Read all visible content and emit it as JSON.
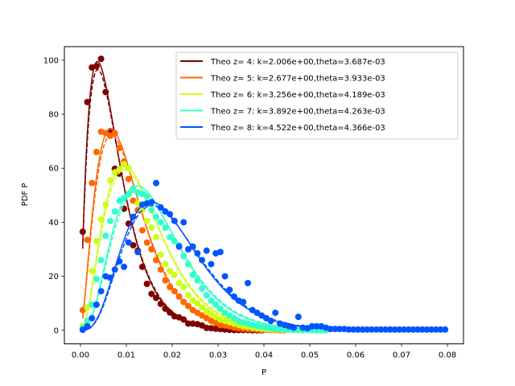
{
  "chart_data": {
    "type": "line",
    "title": "",
    "xlabel": "P",
    "ylabel": "PDF P",
    "xlim": [
      -0.0035,
      0.0835
    ],
    "ylim": [
      -5,
      105
    ],
    "xticks": [
      0.0,
      0.01,
      0.02,
      0.03,
      0.04,
      0.05,
      0.06,
      0.07,
      0.08
    ],
    "xtick_labels": [
      "0.00",
      "0.01",
      "0.02",
      "0.03",
      "0.04",
      "0.05",
      "0.06",
      "0.07",
      "0.08"
    ],
    "yticks": [
      0,
      20,
      40,
      60,
      80,
      100
    ],
    "ytick_labels": [
      "0",
      "20",
      "40",
      "60",
      "80",
      "100"
    ],
    "grid": false,
    "legend_position": "upper right",
    "series": [
      {
        "name": "Theo z= 4: k=2.006e+00,theta=3.687e-03",
        "color": "#800000",
        "k": 2.006,
        "theta": 0.003687,
        "points": [
          [
            0.0005,
            36.5
          ],
          [
            0.0015,
            84.5
          ],
          [
            0.0025,
            97.3
          ],
          [
            0.0035,
            97.8
          ],
          [
            0.0045,
            100.5
          ],
          [
            0.0055,
            88.2
          ],
          [
            0.0065,
            73.7
          ],
          [
            0.0075,
            59.8
          ],
          [
            0.0085,
            58.0
          ],
          [
            0.0095,
            45.0
          ],
          [
            0.0105,
            39.5
          ],
          [
            0.0115,
            31.5
          ],
          [
            0.0125,
            29.5
          ],
          [
            0.0135,
            23.5
          ],
          [
            0.0145,
            17.2
          ],
          [
            0.0155,
            13.5
          ],
          [
            0.0165,
            12.0
          ],
          [
            0.0175,
            9.8
          ],
          [
            0.0185,
            8.0
          ],
          [
            0.0195,
            6.6
          ],
          [
            0.0205,
            5.2
          ],
          [
            0.0215,
            4.8
          ],
          [
            0.0225,
            4.0
          ],
          [
            0.0235,
            2.5
          ],
          [
            0.0245,
            2.5
          ],
          [
            0.0255,
            2.3
          ],
          [
            0.0265,
            1.8
          ],
          [
            0.0275,
            0.9
          ],
          [
            0.0285,
            0.8
          ],
          [
            0.0295,
            0.6
          ],
          [
            0.0305,
            0.5
          ],
          [
            0.0315,
            0.3
          ],
          [
            0.0325,
            0.2
          ],
          [
            0.0335,
            0.1
          ],
          [
            0.0345,
            0.1
          ],
          [
            0.0355,
            0.1
          ],
          [
            0.0365,
            0.1
          ],
          [
            0.0375,
            0.0
          ],
          [
            0.0385,
            0.0
          ],
          [
            0.0395,
            0.0
          ]
        ]
      },
      {
        "name": "Theo z= 5: k=2.677e+00,theta=3.933e-03",
        "color": "#ff6600",
        "k": 2.677,
        "theta": 0.003933,
        "points": [
          [
            0.0005,
            7.5
          ],
          [
            0.0015,
            33.5
          ],
          [
            0.0025,
            54.5
          ],
          [
            0.0035,
            66.0
          ],
          [
            0.0045,
            73.5
          ],
          [
            0.0055,
            73.0
          ],
          [
            0.0065,
            72.0
          ],
          [
            0.0075,
            73.0
          ],
          [
            0.0085,
            67.5
          ],
          [
            0.0095,
            62.5
          ],
          [
            0.0105,
            56.0
          ],
          [
            0.0115,
            48.0
          ],
          [
            0.0125,
            44.5
          ],
          [
            0.0135,
            37.0
          ],
          [
            0.0145,
            32.5
          ],
          [
            0.0155,
            30.0
          ],
          [
            0.0165,
            26.0
          ],
          [
            0.0175,
            22.5
          ],
          [
            0.0185,
            18.5
          ],
          [
            0.0195,
            16.0
          ],
          [
            0.0205,
            14.5
          ],
          [
            0.0215,
            12.5
          ],
          [
            0.0225,
            10.5
          ],
          [
            0.0235,
            9.0
          ],
          [
            0.0245,
            7.5
          ],
          [
            0.0255,
            6.5
          ],
          [
            0.0265,
            5.5
          ],
          [
            0.0275,
            4.5
          ],
          [
            0.0285,
            3.5
          ],
          [
            0.0295,
            2.8
          ],
          [
            0.0305,
            2.0
          ],
          [
            0.0315,
            1.8
          ],
          [
            0.0325,
            1.5
          ],
          [
            0.0335,
            1.0
          ],
          [
            0.0345,
            0.8
          ],
          [
            0.0355,
            0.6
          ],
          [
            0.0365,
            0.5
          ],
          [
            0.0375,
            0.4
          ],
          [
            0.0385,
            0.3
          ],
          [
            0.0395,
            0.2
          ],
          [
            0.0405,
            0.2
          ],
          [
            0.0415,
            0.1
          ],
          [
            0.0425,
            0.1
          ],
          [
            0.0435,
            0.0
          ],
          [
            0.0445,
            0.0
          ]
        ]
      },
      {
        "name": "Theo z= 6: k=3.256e+00,theta=4.189e-03",
        "color": "#ccff1a",
        "k": 3.256,
        "theta": 0.004189,
        "points": [
          [
            0.0005,
            1.5
          ],
          [
            0.0015,
            8.5
          ],
          [
            0.0025,
            22.0
          ],
          [
            0.0035,
            33.0
          ],
          [
            0.0045,
            41.0
          ],
          [
            0.0055,
            46.5
          ],
          [
            0.0065,
            55.5
          ],
          [
            0.0075,
            58.5
          ],
          [
            0.0085,
            59.5
          ],
          [
            0.0095,
            61.5
          ],
          [
            0.0105,
            60.0
          ],
          [
            0.0115,
            52.0
          ],
          [
            0.0125,
            47.0
          ],
          [
            0.0135,
            44.5
          ],
          [
            0.0145,
            40.5
          ],
          [
            0.0155,
            38.0
          ],
          [
            0.0165,
            34.5
          ],
          [
            0.0175,
            28.0
          ],
          [
            0.0185,
            24.5
          ],
          [
            0.0195,
            22.0
          ],
          [
            0.0205,
            20.5
          ],
          [
            0.0215,
            17.5
          ],
          [
            0.0225,
            16.0
          ],
          [
            0.0235,
            13.0
          ],
          [
            0.0245,
            11.0
          ],
          [
            0.0255,
            10.0
          ],
          [
            0.0265,
            8.5
          ],
          [
            0.0275,
            7.0
          ],
          [
            0.0285,
            6.0
          ],
          [
            0.0295,
            5.0
          ],
          [
            0.0305,
            4.0
          ],
          [
            0.0315,
            3.5
          ],
          [
            0.0325,
            3.0
          ],
          [
            0.0335,
            2.5
          ],
          [
            0.0345,
            2.0
          ],
          [
            0.0355,
            1.5
          ],
          [
            0.0365,
            1.3
          ],
          [
            0.0375,
            1.0
          ],
          [
            0.0385,
            0.8
          ],
          [
            0.0395,
            0.6
          ],
          [
            0.0405,
            0.5
          ],
          [
            0.0415,
            0.4
          ],
          [
            0.0425,
            0.3
          ],
          [
            0.0435,
            0.3
          ],
          [
            0.0445,
            0.2
          ],
          [
            0.0455,
            0.2
          ],
          [
            0.0465,
            0.1
          ],
          [
            0.0475,
            0.1
          ],
          [
            0.0485,
            0.0
          ]
        ]
      },
      {
        "name": "Theo z= 7: k=3.892e+00,theta=4.263e-03",
        "color": "#33ffcc",
        "k": 3.892,
        "theta": 0.004263,
        "points": [
          [
            0.0005,
            0.8
          ],
          [
            0.0015,
            3.5
          ],
          [
            0.0025,
            9.5
          ],
          [
            0.0035,
            19.0
          ],
          [
            0.0045,
            26.0
          ],
          [
            0.0055,
            35.0
          ],
          [
            0.0065,
            40.5
          ],
          [
            0.0075,
            44.0
          ],
          [
            0.0085,
            48.0
          ],
          [
            0.0095,
            49.0
          ],
          [
            0.0105,
            50.5
          ],
          [
            0.0115,
            52.5
          ],
          [
            0.0125,
            51.0
          ],
          [
            0.0135,
            50.5
          ],
          [
            0.0145,
            49.5
          ],
          [
            0.0155,
            44.5
          ],
          [
            0.0165,
            42.0
          ],
          [
            0.0175,
            40.0
          ],
          [
            0.0185,
            38.0
          ],
          [
            0.0195,
            34.5
          ],
          [
            0.0205,
            33.0
          ],
          [
            0.0215,
            31.5
          ],
          [
            0.0225,
            27.5
          ],
          [
            0.0235,
            24.5
          ],
          [
            0.0245,
            20.5
          ],
          [
            0.0255,
            18.5
          ],
          [
            0.0265,
            15.5
          ],
          [
            0.0275,
            13.0
          ],
          [
            0.0285,
            11.0
          ],
          [
            0.0295,
            9.5
          ],
          [
            0.0305,
            8.0
          ],
          [
            0.0315,
            6.5
          ],
          [
            0.0325,
            5.5
          ],
          [
            0.0335,
            4.5
          ],
          [
            0.0345,
            3.5
          ],
          [
            0.0355,
            3.0
          ],
          [
            0.0365,
            2.5
          ],
          [
            0.0375,
            2.0
          ],
          [
            0.0385,
            1.6
          ],
          [
            0.0395,
            1.3
          ],
          [
            0.0405,
            1.0
          ],
          [
            0.0415,
            0.8
          ],
          [
            0.0425,
            0.6
          ],
          [
            0.0435,
            0.5
          ],
          [
            0.0445,
            0.4
          ],
          [
            0.0455,
            0.3
          ],
          [
            0.0465,
            0.2
          ],
          [
            0.0475,
            0.2
          ],
          [
            0.0485,
            0.1
          ],
          [
            0.0495,
            0.1
          ],
          [
            0.0505,
            0.1
          ],
          [
            0.0515,
            0.0
          ],
          [
            0.0525,
            0.0
          ],
          [
            0.0535,
            0.0
          ]
        ]
      },
      {
        "name": "Theo z= 8: k=4.522e+00,theta=4.366e-03",
        "color": "#0055ff",
        "k": 4.522,
        "theta": 0.004366,
        "points": [
          [
            0.0005,
            0.2
          ],
          [
            0.0015,
            1.5
          ],
          [
            0.0025,
            4.5
          ],
          [
            0.0035,
            9.5
          ],
          [
            0.0045,
            14.5
          ],
          [
            0.0055,
            20.0
          ],
          [
            0.0065,
            19.5
          ],
          [
            0.0075,
            22.5
          ],
          [
            0.0085,
            25.5
          ],
          [
            0.0095,
            23.5
          ],
          [
            0.0105,
            32.5
          ],
          [
            0.0115,
            42.0
          ],
          [
            0.0125,
            29.0
          ],
          [
            0.0135,
            46.5
          ],
          [
            0.0145,
            47.0
          ],
          [
            0.0155,
            47.5
          ],
          [
            0.0165,
            54.5
          ],
          [
            0.0175,
            45.5
          ],
          [
            0.0185,
            44.0
          ],
          [
            0.0195,
            43.0
          ],
          [
            0.0205,
            40.5
          ],
          [
            0.0215,
            31.0
          ],
          [
            0.0225,
            40.0
          ],
          [
            0.0235,
            30.0
          ],
          [
            0.0245,
            31.0
          ],
          [
            0.0255,
            28.5
          ],
          [
            0.0265,
            26.0
          ],
          [
            0.0275,
            29.5
          ],
          [
            0.0285,
            24.5
          ],
          [
            0.0295,
            28.5
          ],
          [
            0.0305,
            29.0
          ],
          [
            0.0315,
            20.0
          ],
          [
            0.0325,
            15.0
          ],
          [
            0.0335,
            12.5
          ],
          [
            0.0345,
            11.0
          ],
          [
            0.0355,
            10.5
          ],
          [
            0.0365,
            17.5
          ],
          [
            0.0375,
            7.5
          ],
          [
            0.0385,
            6.5
          ],
          [
            0.0395,
            5.5
          ],
          [
            0.0405,
            4.5
          ],
          [
            0.0415,
            3.5
          ],
          [
            0.0425,
            6.5
          ],
          [
            0.0435,
            2.5
          ],
          [
            0.0445,
            2.0
          ],
          [
            0.0455,
            1.5
          ],
          [
            0.0465,
            1.0
          ],
          [
            0.0475,
            5.0
          ],
          [
            0.0485,
            1.0
          ],
          [
            0.0495,
            0.8
          ],
          [
            0.0505,
            1.5
          ],
          [
            0.0515,
            1.5
          ],
          [
            0.0525,
            1.5
          ],
          [
            0.0535,
            1.0
          ],
          [
            0.0545,
            0.5
          ],
          [
            0.0555,
            0.5
          ],
          [
            0.0565,
            0.5
          ],
          [
            0.0575,
            0.5
          ],
          [
            0.0585,
            0.3
          ],
          [
            0.0595,
            0.3
          ],
          [
            0.0605,
            0.3
          ],
          [
            0.0615,
            0.3
          ],
          [
            0.0625,
            0.3
          ],
          [
            0.0635,
            0.3
          ],
          [
            0.0645,
            0.3
          ],
          [
            0.0655,
            0.3
          ],
          [
            0.0665,
            0.3
          ],
          [
            0.0675,
            0.3
          ],
          [
            0.0685,
            0.3
          ],
          [
            0.0695,
            0.3
          ],
          [
            0.0705,
            0.3
          ],
          [
            0.0715,
            0.3
          ],
          [
            0.0725,
            0.3
          ],
          [
            0.0735,
            0.3
          ],
          [
            0.0745,
            0.3
          ],
          [
            0.0755,
            0.3
          ],
          [
            0.0765,
            0.3
          ],
          [
            0.0775,
            0.3
          ],
          [
            0.0785,
            0.3
          ],
          [
            0.0795,
            0.3
          ]
        ]
      }
    ]
  }
}
